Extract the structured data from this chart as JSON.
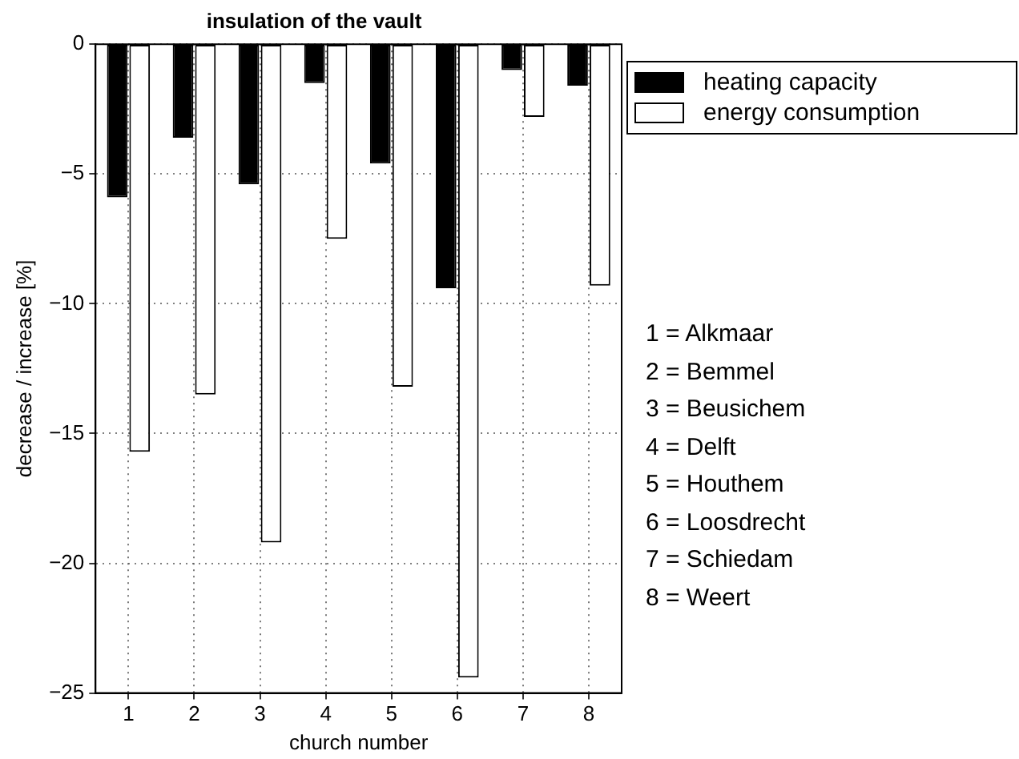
{
  "chart_data": {
    "type": "bar",
    "title": "insulation of the vault",
    "xlabel": "church number",
    "ylabel": "decrease / increase [%]",
    "categories": [
      "1",
      "2",
      "3",
      "4",
      "5",
      "6",
      "7",
      "8"
    ],
    "series": [
      {
        "name": "heating capacity",
        "color": "#000000",
        "values": [
          -5.9,
          -3.6,
          -5.4,
          -1.5,
          -4.6,
          -9.4,
          -1.0,
          -1.6
        ]
      },
      {
        "name": "energy consumption",
        "color": "#ffffff",
        "values": [
          -15.7,
          -13.5,
          -19.2,
          -7.5,
          -13.2,
          -24.4,
          -2.8,
          -9.3
        ]
      }
    ],
    "ylim": [
      -25,
      0
    ],
    "yticks": [
      {
        "value": -25,
        "label": "−25"
      },
      {
        "value": -20,
        "label": "−20"
      },
      {
        "value": -15,
        "label": "−15"
      },
      {
        "value": -10,
        "label": "−10"
      },
      {
        "value": -5,
        "label": "−5"
      },
      0
    ],
    "grid": true,
    "legend": "top right",
    "annotations": [
      "1 = Alkmaar",
      "2 = Bemmel",
      "3 = Beusichem",
      "4 = Delft",
      "5 = Houthem",
      "6 = Loosdrecht",
      "7 = Schiedam",
      "8 = Weert"
    ]
  }
}
